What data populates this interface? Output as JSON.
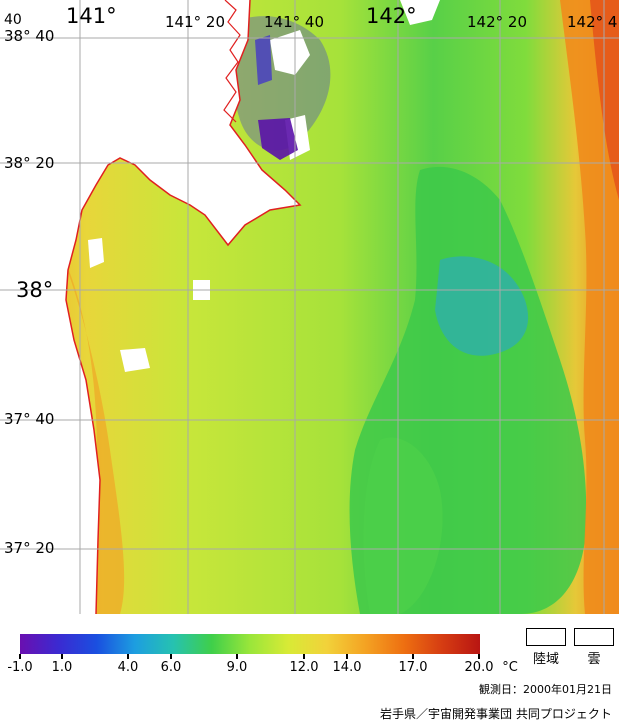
{
  "longitude_labels": [
    "141°",
    "141° 20",
    "141° 40",
    "142°",
    "142° 20",
    "142° 4"
  ],
  "corner_label": "40",
  "latitude_labels": [
    "38° 40",
    "38° 20",
    "38°",
    "37° 40",
    "37° 20"
  ],
  "legend": {
    "ticks": [
      "-1.0",
      "1.0",
      "4.0",
      "6.0",
      "9.0",
      "12.0",
      "14.0",
      "17.0",
      "20.0"
    ],
    "unit": "°C",
    "land_label": "陸域",
    "cloud_label": "雲",
    "colors": [
      "#6a0fb0",
      "#3b2ad1",
      "#1a4fe0",
      "#1d9ee0",
      "#26c2b0",
      "#3fcf4a",
      "#9ae63a",
      "#d8ea36",
      "#f2d23a",
      "#f4a323",
      "#ee7011",
      "#d63d12",
      "#b81512"
    ]
  },
  "colors": {
    "land": "#ffffff",
    "coastline": "#e02020",
    "grid": "#a9a9a9",
    "sst_cold_band": "#34c24a",
    "sst_mid": "#8fe13a",
    "sst_warm": "#e8d83a",
    "sst_hot": "#f08a1c"
  },
  "observation": "観測日：2000年01月21日",
  "credit": "岩手県／宇宙開発事業団 共同プロジェクト"
}
